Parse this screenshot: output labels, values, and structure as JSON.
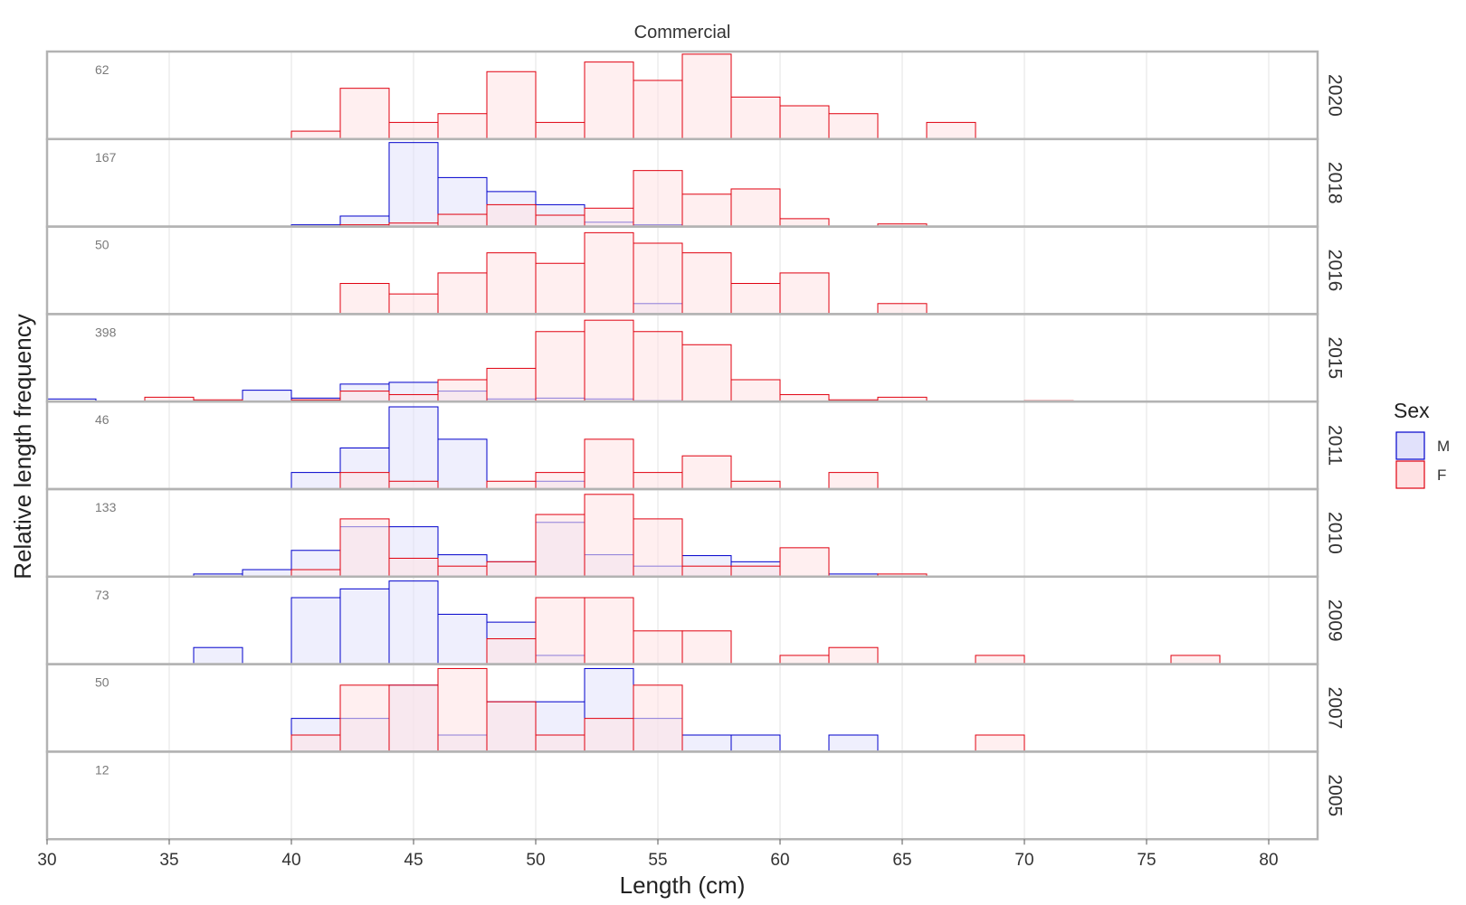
{
  "chart_data": {
    "type": "bar",
    "title": "Commercial",
    "xlabel": "Length (cm)",
    "ylabel": "Relative length frequency",
    "xlim": [
      30,
      82
    ],
    "xticks": [
      30,
      35,
      40,
      45,
      50,
      55,
      60,
      65,
      70,
      75,
      80
    ],
    "bin_width": 2,
    "grid": true,
    "legend": {
      "title": "Sex",
      "position": "right",
      "entries": [
        {
          "name": "M",
          "fill": "#e1e1fb",
          "stroke": "#0000cc"
        },
        {
          "name": "F",
          "fill": "#ffe1e3",
          "stroke": "#e0000f"
        }
      ]
    },
    "panels": [
      {
        "year": "2020",
        "n": "62",
        "series": [
          {
            "name": "M",
            "bins": []
          },
          {
            "name": "F",
            "bins": [
              [
                40,
                0.09
              ],
              [
                42,
                0.58
              ],
              [
                44,
                0.19
              ],
              [
                46,
                0.29
              ],
              [
                48,
                0.77
              ],
              [
                50,
                0.19
              ],
              [
                52,
                0.88
              ],
              [
                54,
                0.67
              ],
              [
                56,
                0.97
              ],
              [
                58,
                0.48
              ],
              [
                60,
                0.38
              ],
              [
                62,
                0.29
              ],
              [
                66,
                0.19
              ]
            ]
          }
        ]
      },
      {
        "year": "2018",
        "n": "167",
        "series": [
          {
            "name": "M",
            "bins": [
              [
                40,
                0.02
              ],
              [
                42,
                0.12
              ],
              [
                44,
                0.96
              ],
              [
                46,
                0.56
              ],
              [
                48,
                0.4
              ],
              [
                50,
                0.25
              ],
              [
                52,
                0.05
              ],
              [
                54,
                0.02
              ]
            ]
          },
          {
            "name": "F",
            "bins": [
              [
                42,
                0.02
              ],
              [
                44,
                0.04
              ],
              [
                46,
                0.14
              ],
              [
                48,
                0.25
              ],
              [
                50,
                0.13
              ],
              [
                52,
                0.21
              ],
              [
                54,
                0.64
              ],
              [
                56,
                0.37
              ],
              [
                58,
                0.43
              ],
              [
                60,
                0.09
              ],
              [
                64,
                0.03
              ]
            ]
          }
        ]
      },
      {
        "year": "2016",
        "n": "50",
        "series": [
          {
            "name": "M",
            "bins": [
              [
                54,
                0.12
              ]
            ]
          },
          {
            "name": "F",
            "bins": [
              [
                42,
                0.35
              ],
              [
                44,
                0.23
              ],
              [
                46,
                0.47
              ],
              [
                48,
                0.7
              ],
              [
                50,
                0.58
              ],
              [
                52,
                0.93
              ],
              [
                54,
                0.81
              ],
              [
                56,
                0.7
              ],
              [
                58,
                0.35
              ],
              [
                60,
                0.47
              ],
              [
                64,
                0.12
              ]
            ]
          }
        ]
      },
      {
        "year": "2015",
        "n": "398",
        "series": [
          {
            "name": "M",
            "bins": [
              [
                30,
                0.03
              ],
              [
                38,
                0.13
              ],
              [
                40,
                0.04
              ],
              [
                42,
                0.2
              ],
              [
                44,
                0.22
              ],
              [
                46,
                0.12
              ],
              [
                48,
                0.03
              ],
              [
                50,
                0.04
              ],
              [
                52,
                0.03
              ],
              [
                54,
                0.01
              ]
            ]
          },
          {
            "name": "F",
            "bins": [
              [
                34,
                0.05
              ],
              [
                36,
                0.02
              ],
              [
                40,
                0.02
              ],
              [
                42,
                0.12
              ],
              [
                44,
                0.08
              ],
              [
                46,
                0.25
              ],
              [
                48,
                0.38
              ],
              [
                50,
                0.8
              ],
              [
                52,
                0.93
              ],
              [
                54,
                0.8
              ],
              [
                56,
                0.65
              ],
              [
                58,
                0.25
              ],
              [
                60,
                0.08
              ],
              [
                62,
                0.02
              ],
              [
                64,
                0.05
              ],
              [
                70,
                0.01
              ]
            ]
          }
        ]
      },
      {
        "year": "2011",
        "n": "46",
        "series": [
          {
            "name": "M",
            "bins": [
              [
                40,
                0.19
              ],
              [
                42,
                0.47
              ],
              [
                44,
                0.94
              ],
              [
                46,
                0.57
              ],
              [
                50,
                0.09
              ]
            ]
          },
          {
            "name": "F",
            "bins": [
              [
                42,
                0.19
              ],
              [
                44,
                0.09
              ],
              [
                48,
                0.09
              ],
              [
                50,
                0.19
              ],
              [
                52,
                0.57
              ],
              [
                54,
                0.19
              ],
              [
                56,
                0.38
              ],
              [
                58,
                0.09
              ],
              [
                62,
                0.19
              ]
            ]
          }
        ]
      },
      {
        "year": "2010",
        "n": "133",
        "series": [
          {
            "name": "M",
            "bins": [
              [
                36,
                0.03
              ],
              [
                38,
                0.08
              ],
              [
                40,
                0.3
              ],
              [
                42,
                0.57
              ],
              [
                44,
                0.57
              ],
              [
                46,
                0.25
              ],
              [
                48,
                0.17
              ],
              [
                50,
                0.62
              ],
              [
                52,
                0.25
              ],
              [
                54,
                0.12
              ],
              [
                56,
                0.24
              ],
              [
                58,
                0.17
              ],
              [
                62,
                0.03
              ]
            ]
          },
          {
            "name": "F",
            "bins": [
              [
                40,
                0.08
              ],
              [
                42,
                0.66
              ],
              [
                44,
                0.21
              ],
              [
                46,
                0.12
              ],
              [
                48,
                0.17
              ],
              [
                50,
                0.71
              ],
              [
                52,
                0.94
              ],
              [
                54,
                0.66
              ],
              [
                56,
                0.12
              ],
              [
                58,
                0.12
              ],
              [
                60,
                0.33
              ],
              [
                64,
                0.03
              ]
            ]
          }
        ]
      },
      {
        "year": "2009",
        "n": "73",
        "series": [
          {
            "name": "M",
            "bins": [
              [
                36,
                0.19
              ],
              [
                40,
                0.76
              ],
              [
                42,
                0.86
              ],
              [
                44,
                0.95
              ],
              [
                46,
                0.57
              ],
              [
                48,
                0.48
              ],
              [
                50,
                0.1
              ]
            ]
          },
          {
            "name": "F",
            "bins": [
              [
                48,
                0.29
              ],
              [
                50,
                0.76
              ],
              [
                52,
                0.76
              ],
              [
                54,
                0.38
              ],
              [
                56,
                0.38
              ],
              [
                60,
                0.1
              ],
              [
                62,
                0.19
              ],
              [
                68,
                0.1
              ],
              [
                76,
                0.1
              ]
            ]
          }
        ]
      },
      {
        "year": "2007",
        "n": "50",
        "series": [
          {
            "name": "M",
            "bins": [
              [
                40,
                0.38
              ],
              [
                42,
                0.38
              ],
              [
                44,
                0.76
              ],
              [
                46,
                0.19
              ],
              [
                48,
                0.57
              ],
              [
                50,
                0.57
              ],
              [
                52,
                0.95
              ],
              [
                54,
                0.38
              ],
              [
                56,
                0.19
              ],
              [
                58,
                0.19
              ],
              [
                62,
                0.19
              ]
            ]
          },
          {
            "name": "F",
            "bins": [
              [
                40,
                0.19
              ],
              [
                42,
                0.76
              ],
              [
                44,
                0.76
              ],
              [
                46,
                0.95
              ],
              [
                48,
                0.57
              ],
              [
                50,
                0.19
              ],
              [
                52,
                0.38
              ],
              [
                54,
                0.76
              ],
              [
                68,
                0.19
              ]
            ]
          }
        ]
      },
      {
        "year": "2005",
        "n": "12",
        "series": [
          {
            "name": "M",
            "bins": []
          },
          {
            "name": "F",
            "bins": []
          }
        ]
      }
    ]
  }
}
